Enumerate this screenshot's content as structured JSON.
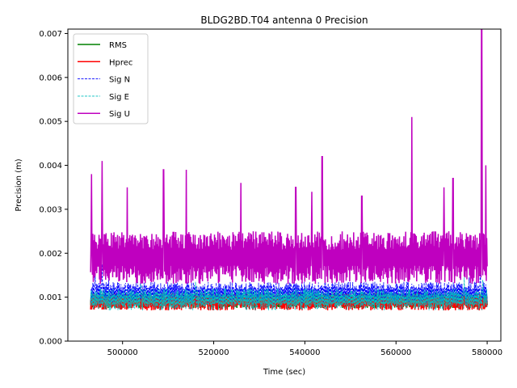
{
  "chart_data": {
    "type": "line",
    "title": "BLDG2BD.T04 antenna 0 Precision",
    "xlabel": "Time (sec)",
    "ylabel": "Precision (m)",
    "xlim": [
      488000,
      583000
    ],
    "ylim": [
      0.0,
      0.0071
    ],
    "xticks": [
      500000,
      520000,
      540000,
      560000,
      580000
    ],
    "xtick_labels": [
      "500000",
      "520000",
      "540000",
      "560000",
      "580000"
    ],
    "yticks": [
      0.0,
      0.001,
      0.002,
      0.003,
      0.004,
      0.005,
      0.006,
      0.007
    ],
    "ytick_labels": [
      "0.000",
      "0.001",
      "0.002",
      "0.003",
      "0.004",
      "0.005",
      "0.006",
      "0.007"
    ],
    "grid": false,
    "legend_position": "top-left",
    "x_start": 493000,
    "x_end": 580000,
    "series": [
      {
        "name": "RMS",
        "color": "#008000",
        "style": "solid",
        "width": 1.5,
        "baseline": 0.0009,
        "spread": 0.00015,
        "peaks": []
      },
      {
        "name": "Hprec",
        "color": "#ff0000",
        "style": "solid",
        "width": 1.5,
        "baseline": 0.0009,
        "spread": 0.0002,
        "peaks": []
      },
      {
        "name": "Sig N",
        "color": "#0000ff",
        "style": "dashed",
        "width": 0.8,
        "baseline": 0.0011,
        "spread": 0.00025,
        "peaks": [
          [
            494000,
            0.00155
          ],
          [
            495500,
            0.00175
          ],
          [
            497000,
            0.00155
          ],
          [
            560000,
            0.00135
          ],
          [
            576000,
            0.00145
          ],
          [
            578500,
            0.0015
          ]
        ]
      },
      {
        "name": "Sig E",
        "color": "#00bfbf",
        "style": "dashed",
        "width": 0.8,
        "baseline": 0.00095,
        "spread": 0.00025,
        "peaks": [
          [
            504000,
            0.00145
          ],
          [
            516000,
            0.00135
          ],
          [
            575000,
            0.00145
          ],
          [
            579000,
            0.0014
          ]
        ]
      },
      {
        "name": "Sig U",
        "color": "#bf00bf",
        "style": "solid",
        "width": 1.5,
        "baseline": 0.0019,
        "spread": 0.0006,
        "peaks": [
          [
            493200,
            0.0038
          ],
          [
            495500,
            0.0041
          ],
          [
            501000,
            0.0035
          ],
          [
            509000,
            0.0039
          ],
          [
            514000,
            0.0039
          ],
          [
            526000,
            0.0036
          ],
          [
            538000,
            0.0035
          ],
          [
            541500,
            0.0034
          ],
          [
            543800,
            0.0042
          ],
          [
            552500,
            0.0033
          ],
          [
            563500,
            0.0051
          ],
          [
            570500,
            0.0035
          ],
          [
            572500,
            0.0037
          ],
          [
            578800,
            0.0071
          ],
          [
            579700,
            0.004
          ]
        ]
      }
    ]
  }
}
